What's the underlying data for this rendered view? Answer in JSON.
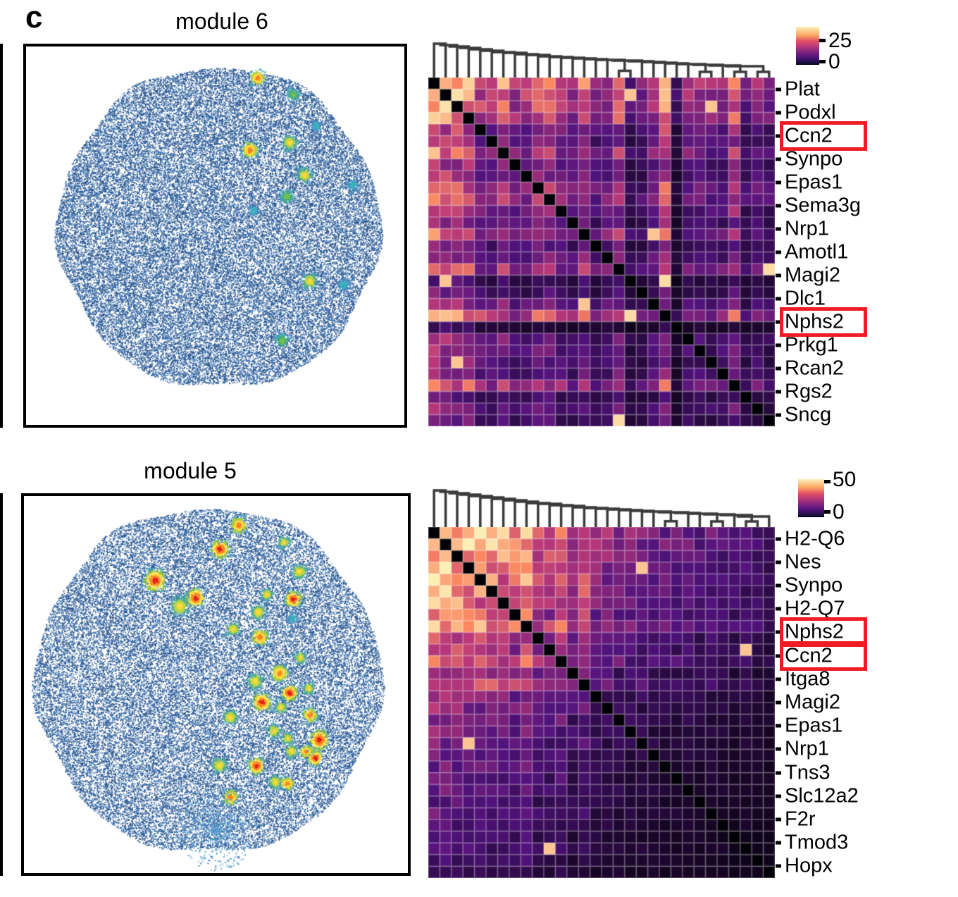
{
  "panel_label": "c",
  "palette": {
    "background": "#ffffff",
    "box_border": "#000000",
    "dot_blue": "#35619f",
    "dendrogram": "#3a3a3a",
    "highlight_red": "#ee1d23",
    "hotspot_palettes": {
      "red": [
        "#e31d1d",
        "#fb8c20",
        "#ffe24a",
        "#8cc63f",
        "#45a3b8"
      ],
      "orange": [
        "#f9821e",
        "#ffd93f",
        "#a8cf3f",
        "#45a3b8"
      ],
      "yellow": [
        "#ffd83c",
        "#bcd93f",
        "#57b08c",
        "#45a3b8"
      ],
      "green": [
        "#74c043",
        "#43ae8c",
        "#45a3b8"
      ],
      "teal": [
        "#3ab0be",
        "#4a90c2"
      ],
      "tealpatch": [
        "#4aa8c9",
        "#4f85c2",
        "#619bd0"
      ]
    }
  },
  "chart_data": [
    {
      "id": "module6-spatial",
      "type": "scatter",
      "title": "module 6",
      "shape": "circular tissue section of dense dots",
      "base_color_meaning": "low module score = dark blue speckle",
      "hotspot_color_meaning": "high module score = teal/green/yellow/orange",
      "hotspots": [
        [
          0.61,
          0.082,
          "orange",
          9
        ],
        [
          0.705,
          0.125,
          "green",
          7
        ],
        [
          0.59,
          0.272,
          "orange",
          10
        ],
        [
          0.695,
          0.252,
          "yellow",
          9
        ],
        [
          0.765,
          0.208,
          "teal",
          6
        ],
        [
          0.735,
          0.338,
          "yellow",
          9
        ],
        [
          0.862,
          0.365,
          "teal",
          7
        ],
        [
          0.688,
          0.395,
          "green",
          8
        ],
        [
          0.6,
          0.432,
          "teal",
          6
        ],
        [
          0.748,
          0.618,
          "yellow",
          9
        ],
        [
          0.838,
          0.628,
          "teal",
          7
        ],
        [
          0.675,
          0.775,
          "green",
          8
        ]
      ],
      "voids": []
    },
    {
      "id": "module6-heatmap",
      "type": "heatmap",
      "size": 30,
      "vmin": 0,
      "vmax": 25,
      "legend_ticks": [
        "25",
        "0"
      ],
      "colormap": "magma",
      "diagonal_value": 0,
      "labels_every_n_rows": 2,
      "row_labels": [
        "Plat",
        "Podxl",
        "Ccn2",
        "Synpo",
        "Epas1",
        "Sema3g",
        "Nrp1",
        "Amotl1",
        "Magi2",
        "Dlc1",
        "Nphs2",
        "Prkg1",
        "Rcan2",
        "Rgs2",
        "Sncg"
      ],
      "boxed_labels": [
        "Ccn2",
        "Nphs2"
      ],
      "profile": [
        0.97,
        0.92,
        0.87,
        0.83,
        0.58,
        0.52,
        0.72,
        0.5,
        0.52,
        0.68,
        0.66,
        0.55,
        0.45,
        0.68,
        0.42,
        0.5,
        0.66,
        0.28,
        0.34,
        0.5,
        0.85,
        0.2,
        0.45,
        0.48,
        0.42,
        0.46,
        0.72,
        0.33,
        0.45,
        0.36
      ],
      "merge_heights": [
        48,
        46,
        44,
        42,
        40,
        38,
        36,
        35,
        33,
        32,
        30,
        29,
        28,
        27,
        26,
        25,
        24,
        23,
        22,
        21,
        20,
        19,
        18,
        17,
        16,
        15,
        13,
        12,
        10
      ],
      "pairs": [
        [
          16,
          17
        ],
        [
          23,
          24
        ],
        [
          26,
          27
        ],
        [
          28,
          29
        ]
      ],
      "bright_cells": [
        [
          16,
          29
        ],
        [
          20,
          17
        ]
      ]
    },
    {
      "id": "module5-spatial",
      "type": "scatter",
      "title": "module 5",
      "shape": "circular tissue section of dense dots",
      "base_color_meaning": "low module score = dark blue speckle",
      "hotspot_color_meaning": "high module score = yellow/orange/red glomerular spots",
      "hotspots": [
        [
          0.558,
          0.076,
          "orange",
          10
        ],
        [
          0.509,
          0.139,
          "red",
          11
        ],
        [
          0.676,
          0.121,
          "yellow",
          7
        ],
        [
          0.34,
          0.222,
          "red",
          13
        ],
        [
          0.445,
          0.268,
          "red",
          11
        ],
        [
          0.404,
          0.29,
          "yellow",
          11
        ],
        [
          0.716,
          0.198,
          "yellow",
          9
        ],
        [
          0.7,
          0.272,
          "red",
          10
        ],
        [
          0.631,
          0.259,
          "yellow",
          7
        ],
        [
          0.609,
          0.306,
          "yellow",
          9
        ],
        [
          0.543,
          0.351,
          "yellow",
          8
        ],
        [
          0.613,
          0.373,
          "orange",
          10
        ],
        [
          0.698,
          0.322,
          "teal",
          6
        ],
        [
          0.718,
          0.427,
          "yellow",
          7
        ],
        [
          0.664,
          0.468,
          "orange",
          10
        ],
        [
          0.6,
          0.49,
          "yellow",
          9
        ],
        [
          0.69,
          0.52,
          "red",
          10
        ],
        [
          0.74,
          0.508,
          "yellow",
          7
        ],
        [
          0.618,
          0.545,
          "red",
          11
        ],
        [
          0.667,
          0.558,
          "yellow",
          7
        ],
        [
          0.535,
          0.585,
          "yellow",
          9
        ],
        [
          0.744,
          0.579,
          "orange",
          9
        ],
        [
          0.649,
          0.621,
          "yellow",
          8
        ],
        [
          0.685,
          0.641,
          "yellow",
          7
        ],
        [
          0.767,
          0.645,
          "red",
          12
        ],
        [
          0.695,
          0.675,
          "yellow",
          8
        ],
        [
          0.734,
          0.677,
          "orange",
          8
        ],
        [
          0.757,
          0.693,
          "red",
          9
        ],
        [
          0.507,
          0.712,
          "yellow",
          9
        ],
        [
          0.604,
          0.714,
          "red",
          10
        ],
        [
          0.653,
          0.757,
          "yellow",
          8
        ],
        [
          0.684,
          0.76,
          "orange",
          8
        ],
        [
          0.537,
          0.797,
          "orange",
          9
        ],
        [
          0.5,
          0.885,
          "tealpatch",
          26
        ]
      ],
      "voids": [
        [
          0.958,
          0.472,
          9
        ]
      ]
    },
    {
      "id": "module5-heatmap",
      "type": "heatmap",
      "size": 30,
      "vmin": 0,
      "vmax": 50,
      "legend_ticks": [
        "50",
        "0"
      ],
      "colormap": "magma",
      "diagonal_value": 0,
      "labels_every_n_rows": 2,
      "row_labels": [
        "H2-Q6",
        "Nes",
        "Synpo",
        "H2-Q7",
        "Nphs2",
        "Ccn2",
        "Itga8",
        "Magi2",
        "Epas1",
        "Nrp1",
        "Tns3",
        "Slc12a2",
        "F2r",
        "Tmod3",
        "Hopx"
      ],
      "boxed_labels": [
        "Nphs2",
        "Ccn2"
      ],
      "profile": [
        0.98,
        0.95,
        0.9,
        0.87,
        0.84,
        0.8,
        0.77,
        0.73,
        0.88,
        0.62,
        0.56,
        0.72,
        0.5,
        0.66,
        0.45,
        0.42,
        0.4,
        0.38,
        0.36,
        0.34,
        0.33,
        0.31,
        0.33,
        0.28,
        0.3,
        0.27,
        0.24,
        0.26,
        0.22,
        0.2
      ],
      "merge_heights": [
        52,
        50,
        48,
        46,
        44,
        42,
        40,
        38,
        36,
        34,
        33,
        31,
        30,
        28,
        27,
        26,
        25,
        24,
        23,
        22,
        21,
        20,
        19,
        18,
        17,
        15,
        13,
        12,
        10
      ],
      "pairs": [
        [
          20,
          21
        ],
        [
          24,
          25
        ],
        [
          27,
          28
        ]
      ],
      "bright_cells": []
    }
  ]
}
